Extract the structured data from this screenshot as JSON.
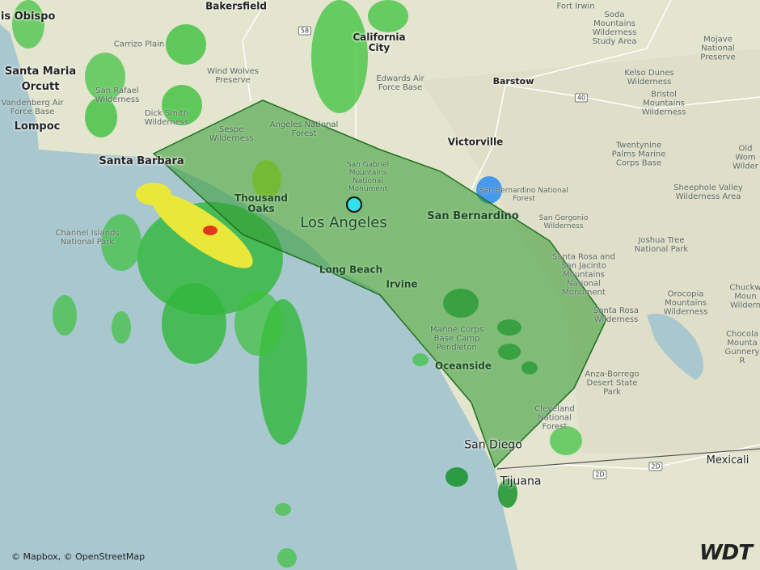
{
  "map": {
    "attribution": "© Mapbox, © OpenStreetMap",
    "logo": "WDT",
    "colors": {
      "land": "#e3e5cf",
      "ocean": "#a9c7cf",
      "warning_polygon": "#2f9b2f",
      "radar_light": "#3cc23c",
      "radar_heavy": "#0a8f1f",
      "radar_yellow": "#e9e83a",
      "radar_red": "#e2391d",
      "radar_blue": "#2a8cf0",
      "location_marker": "#2fe3ec"
    },
    "cities": [
      "uis Obispo",
      "Santa Maria",
      "Orcutt",
      "Lompoc",
      "Santa Barbara",
      "Thousand Oaks",
      "Los Angeles",
      "Long Beach",
      "Irvine",
      "Oceanside",
      "San Diego",
      "Tijuana",
      "Mexicali",
      "San Bernardino",
      "Victorville",
      "Barstow",
      "California City",
      "Bakersfield"
    ],
    "places": [
      "Carrizo Plain",
      "Wind Wolves Preserve",
      "San Rafael Wilderness",
      "Dick Smith Wilderness",
      "Vandenberg Air Force Base",
      "Sespe Wilderness",
      "Angeles National Forest",
      "San Gabriel Mountains National Monument",
      "Channel Islands National Park",
      "Edwards Air Force Base",
      "Soda Mountains Wilderness Study Area",
      "Mojave National Preserve",
      "Kelso Dunes Wilderness",
      "Bristol Mountains Wilderness",
      "Twentynine Palms Marine Corps Base",
      "Sheephole Valley Wilderness Area",
      "Old Wom Wilder",
      "San Bernardino National Forest",
      "San Gorgonio Wilderness",
      "Joshua Tree National Park",
      "Santa Rosa and San Jacinto Mountains National Monument",
      "Santa Rosa Wilderness",
      "Orocopia Mountains Wilderness",
      "Chuckw Moun Wildern",
      "Chocola Mounta Gunnery R",
      "Marine Corps Base Camp Pendleton",
      "Anza-Borrego Desert State Park",
      "Cleveland National Forest",
      "Fort Irwin"
    ],
    "road_shields": [
      "58",
      "40",
      "2D",
      "2D"
    ]
  }
}
